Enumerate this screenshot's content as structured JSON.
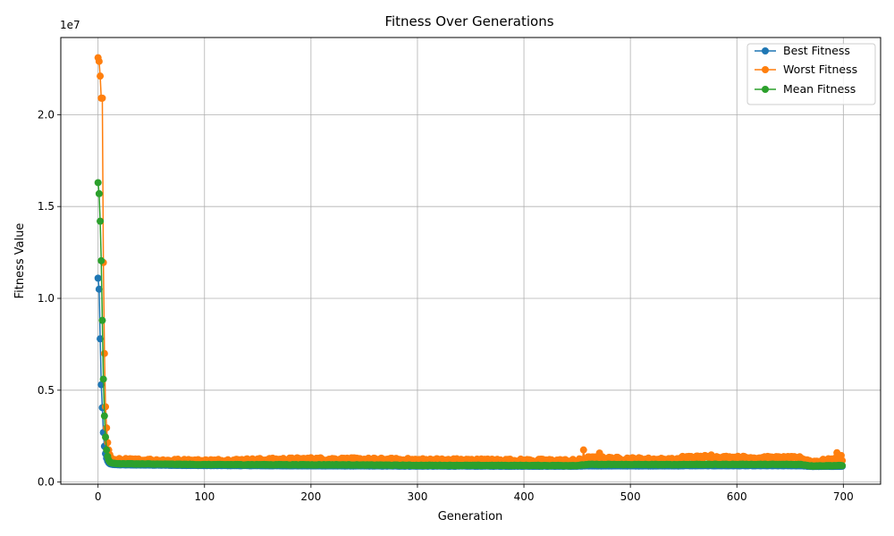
{
  "chart_data": {
    "type": "line",
    "title": "Fitness Over Generations",
    "xlabel": "Generation",
    "ylabel": "Fitness Value",
    "offset_text": "1e7",
    "xlim": [
      -35,
      735
    ],
    "ylim": [
      -115000,
      24200000
    ],
    "x_ticks": [
      0,
      100,
      200,
      300,
      400,
      500,
      600,
      700
    ],
    "x_tick_labels": [
      "0",
      "100",
      "200",
      "300",
      "400",
      "500",
      "600",
      "700"
    ],
    "y_ticks": [
      0,
      5000000,
      10000000,
      15000000,
      20000000
    ],
    "y_tick_labels": [
      "0.0",
      "0.5",
      "1.0",
      "1.5",
      "2.0"
    ],
    "grid": true,
    "legend_position": "top-right",
    "x_range": [
      0,
      699
    ],
    "series": [
      {
        "name": "Best Fitness",
        "color": "#1f77b4",
        "early_values": [
          11100000,
          10500000,
          7800000,
          5300000,
          4050000,
          2700000,
          1950000,
          1550000,
          1300000,
          1150000,
          1050000,
          1000000,
          980000,
          970000,
          960000,
          955000,
          950000,
          948000,
          945000,
          942000
        ],
        "trend": [
          [
            20,
            940000
          ],
          [
            100,
            900000
          ],
          [
            225,
            880000
          ],
          [
            300,
            870000
          ],
          [
            450,
            865000
          ],
          [
            460,
            880000
          ],
          [
            545,
            880000
          ],
          [
            550,
            890000
          ],
          [
            660,
            890000
          ],
          [
            670,
            850000
          ],
          [
            699,
            860000
          ]
        ],
        "noise": 8000,
        "spikes": []
      },
      {
        "name": "Worst Fitness",
        "color": "#ff7f0e",
        "early_values": [
          23100000,
          22900000,
          22100000,
          20900000,
          20900000,
          11950000,
          7000000,
          4100000,
          2950000,
          2150000,
          1750000,
          1500000,
          1350000,
          1280000,
          1250000,
          1230000,
          1220000,
          1210000,
          1200000,
          1200000
        ],
        "trend": [
          [
            20,
            1200000
          ],
          [
            100,
            1150000
          ],
          [
            200,
            1250000
          ],
          [
            300,
            1200000
          ],
          [
            450,
            1150000
          ],
          [
            460,
            1300000
          ],
          [
            545,
            1200000
          ],
          [
            550,
            1350000
          ],
          [
            660,
            1300000
          ],
          [
            670,
            1100000
          ],
          [
            699,
            1250000
          ]
        ],
        "noise": 90000,
        "spikes": [
          [
            456,
            1750000
          ],
          [
            471,
            1580000
          ],
          [
            570,
            1450000
          ],
          [
            576,
            1480000
          ],
          [
            694,
            1600000
          ],
          [
            698,
            1450000
          ]
        ]
      },
      {
        "name": "Mean Fitness",
        "color": "#2ca02c",
        "early_values": [
          16300000,
          15700000,
          14200000,
          12050000,
          8800000,
          5600000,
          3600000,
          2450000,
          1750000,
          1400000,
          1200000,
          1100000,
          1060000,
          1040000,
          1030000,
          1020000,
          1015000,
          1010000,
          1005000,
          1000000
        ],
        "trend": [
          [
            20,
            1000000
          ],
          [
            100,
            950000
          ],
          [
            225,
            940000
          ],
          [
            300,
            910000
          ],
          [
            450,
            900000
          ],
          [
            460,
            960000
          ],
          [
            545,
            950000
          ],
          [
            550,
            960000
          ],
          [
            660,
            960000
          ],
          [
            670,
            880000
          ],
          [
            699,
            900000
          ]
        ],
        "noise": 15000,
        "spikes": []
      }
    ]
  }
}
